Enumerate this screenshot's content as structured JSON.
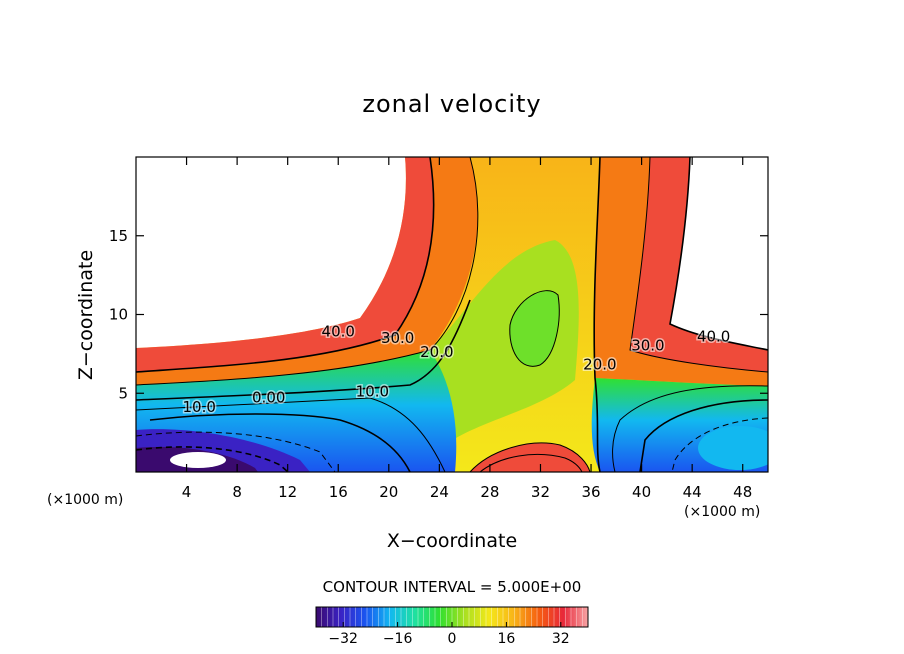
{
  "chart_data": {
    "type": "heatmap",
    "title": "zonal velocity",
    "xlabel": "X−coordinate",
    "ylabel": "Z−coordinate",
    "x_unit_left": "(×1000 m)",
    "x_unit_right": "(×1000 m)",
    "xlim": [
      0,
      50
    ],
    "ylim": [
      0,
      20
    ],
    "x_ticks": [
      4,
      8,
      12,
      16,
      20,
      24,
      28,
      32,
      36,
      40,
      44,
      48
    ],
    "y_ticks": [
      5,
      10,
      15
    ],
    "contour_interval_text": "CONTOUR INTERVAL = 5.000E+00",
    "contour_labels": [
      {
        "text": "40.0",
        "x": 16,
        "y": 8.6
      },
      {
        "text": "30.0",
        "x": 20.7,
        "y": 8.2
      },
      {
        "text": "20.0",
        "x": 23.8,
        "y": 7.3
      },
      {
        "text": "10.0",
        "x": 18.7,
        "y": 4.8
      },
      {
        "text": "0.00",
        "x": 10.5,
        "y": 4.4
      },
      {
        "text": "10.0",
        "x": 5.0,
        "y": 3.8
      },
      {
        "text": "20.0",
        "x": 36.7,
        "y": 6.5
      },
      {
        "text": "30.0",
        "x": 40.5,
        "y": 7.7
      },
      {
        "text": "40.0",
        "x": 45.7,
        "y": 8.3
      }
    ],
    "colorbar": {
      "range": [
        -40,
        40
      ],
      "tick_values": [
        -32,
        -16,
        0,
        16,
        32
      ],
      "tick_labels": [
        "−32",
        "−16",
        "0",
        "16",
        "32"
      ],
      "colors": [
        "#3a0a6e",
        "#3a22c4",
        "#1a55f0",
        "#12b8f0",
        "#1fe1a0",
        "#30e030",
        "#a8e020",
        "#f4e81a",
        "#f8b418",
        "#f55e10",
        "#e8283a",
        "#f7a5a5"
      ]
    }
  }
}
